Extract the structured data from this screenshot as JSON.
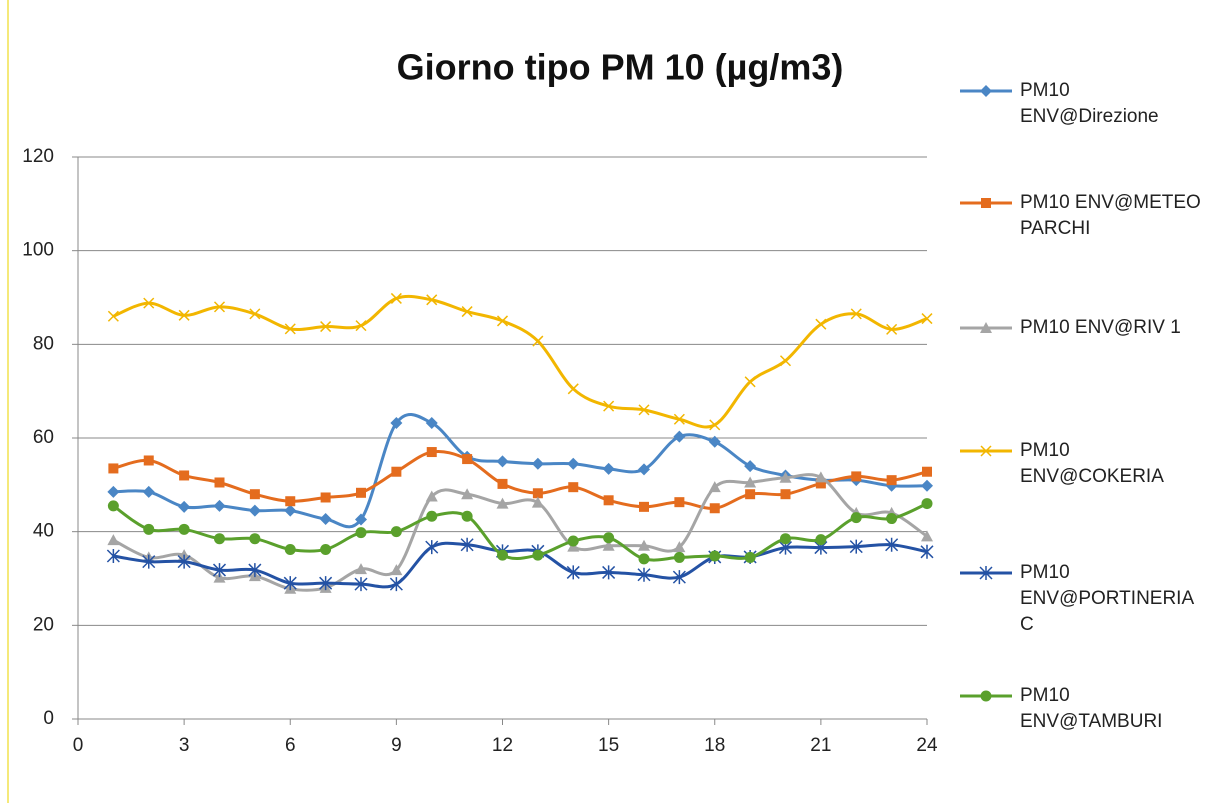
{
  "chart_data": {
    "type": "line",
    "title": "Giorno tipo PM 10 (µg/m3)",
    "x": [
      1,
      2,
      3,
      4,
      5,
      6,
      7,
      8,
      9,
      10,
      11,
      12,
      13,
      14,
      15,
      16,
      17,
      18,
      19,
      20,
      21,
      22,
      23,
      24
    ],
    "xlim": [
      0,
      24
    ],
    "xticks": [
      0,
      3,
      6,
      9,
      12,
      15,
      18,
      21,
      24
    ],
    "ylim": [
      0,
      120
    ],
    "yticks": [
      0,
      20,
      40,
      60,
      80,
      100,
      120
    ],
    "grid": true,
    "legend": "right",
    "series": [
      {
        "name": "PM10 ENV@Direzione",
        "color": "#4a86c5",
        "marker": "diamond",
        "values": [
          48.5,
          48.5,
          45.3,
          45.5,
          44.5,
          44.5,
          42.7,
          42.6,
          63.2,
          63.2,
          56,
          55,
          54.5,
          54.5,
          53.4,
          53.3,
          60.3,
          59.2,
          54,
          52,
          51,
          51,
          49.8,
          49.8
        ]
      },
      {
        "name": "PM10 ENV@METEO PARCHI",
        "color": "#e46c1e",
        "marker": "square",
        "values": [
          53.5,
          55.2,
          52,
          50.5,
          48,
          46.5,
          47.3,
          48.3,
          52.8,
          57,
          55.5,
          50.2,
          48.2,
          49.5,
          46.7,
          45.3,
          46.3,
          45,
          48,
          48,
          50.3,
          51.8,
          51,
          52.8
        ]
      },
      {
        "name": "PM10 ENV@RIV 1",
        "color": "#a5a5a5",
        "marker": "triangle",
        "values": [
          38.2,
          34.5,
          35,
          30.2,
          30.5,
          27.8,
          28,
          32,
          31.8,
          47.5,
          48,
          46,
          46.2,
          36.8,
          37,
          37,
          36.7,
          49.5,
          50.5,
          51.5,
          51.6,
          44,
          44,
          39
        ]
      },
      {
        "name": "PM10 ENV@COKERIA",
        "color": "#f2b600",
        "marker": "x",
        "values": [
          86,
          88.8,
          86.2,
          88,
          86.5,
          83.3,
          83.8,
          84,
          89.8,
          89.5,
          87,
          85,
          80.7,
          70.5,
          66.8,
          66,
          64,
          62.8,
          72,
          76.5,
          84.3,
          86.5,
          83.2,
          85.5
        ]
      },
      {
        "name": "PM10 ENV@PORTINERIA C",
        "color": "#2452a4",
        "marker": "star",
        "values": [
          34.8,
          33.6,
          33.6,
          31.8,
          31.8,
          29,
          29,
          28.8,
          28.8,
          36.7,
          37.2,
          35.8,
          35.8,
          31.3,
          31.3,
          30.8,
          30.3,
          34.6,
          34.6,
          36.6,
          36.6,
          36.8,
          37.2,
          35.7
        ]
      },
      {
        "name": "PM10 ENV@TAMBURI",
        "color": "#5aa02c",
        "marker": "circle",
        "values": [
          45.5,
          40.5,
          40.5,
          38.5,
          38.5,
          36.2,
          36.2,
          39.8,
          40,
          43.3,
          43.3,
          35,
          35,
          38,
          38.7,
          34.2,
          34.5,
          34.8,
          34.5,
          38.5,
          38.3,
          43,
          42.8,
          46
        ]
      }
    ]
  }
}
